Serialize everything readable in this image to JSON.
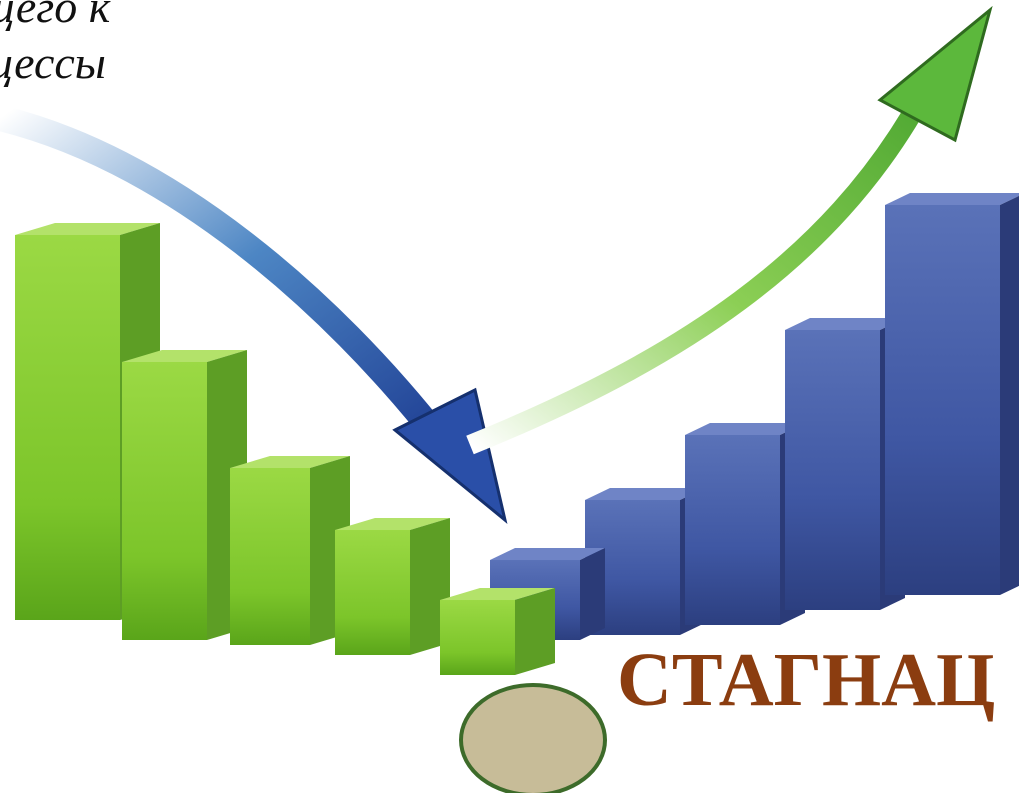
{
  "texts": {
    "line1": "щего к",
    "line2": "цессы",
    "stagnation": "СТАГНАЦ"
  }
}
